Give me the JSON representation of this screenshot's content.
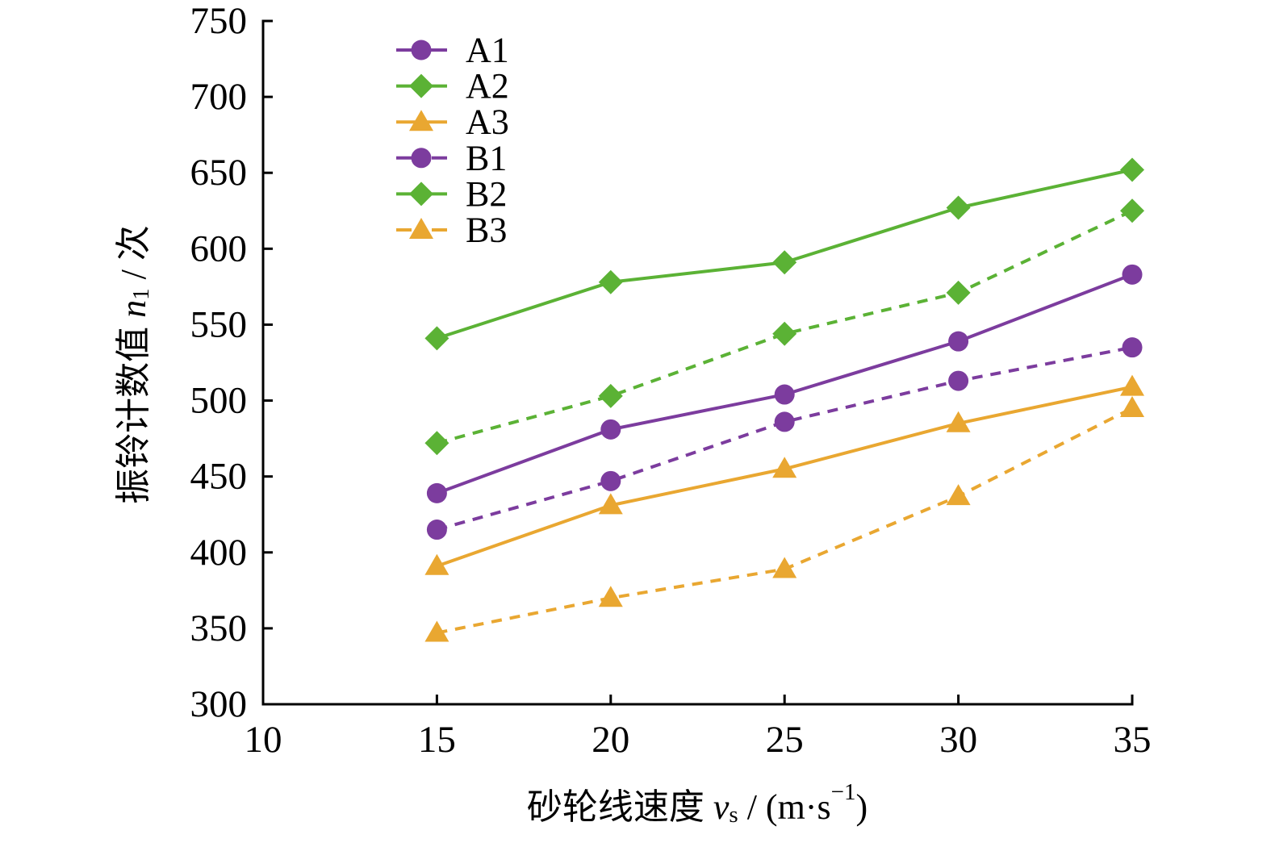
{
  "chart_data": {
    "type": "line",
    "x": [
      15,
      20,
      25,
      30,
      35
    ],
    "xlim": [
      10,
      35
    ],
    "ylim": [
      300,
      750
    ],
    "xticks": [
      10,
      15,
      20,
      25,
      30,
      35
    ],
    "yticks": [
      300,
      350,
      400,
      450,
      500,
      550,
      600,
      650,
      700,
      750
    ],
    "xlabel": [
      "砂轮线速度 ",
      "v",
      "s",
      " / (m·s",
      "−1",
      ")"
    ],
    "ylabel": [
      "振铃计数值 ",
      "n",
      "1",
      " / 次"
    ],
    "grid": false,
    "legend_position": "top-left",
    "series": [
      {
        "name": "A1",
        "values": [
          439,
          481,
          504,
          539,
          583
        ],
        "color": "#7C3C9E",
        "line": "solid",
        "marker": "circle"
      },
      {
        "name": "A2",
        "values": [
          541,
          578,
          591,
          627,
          652
        ],
        "color": "#5BB235",
        "line": "solid",
        "marker": "diamond"
      },
      {
        "name": "A3",
        "values": [
          391,
          431,
          455,
          485,
          509
        ],
        "color": "#E9A731",
        "line": "solid",
        "marker": "triangle"
      },
      {
        "name": "B1",
        "values": [
          415,
          447,
          486,
          513,
          535
        ],
        "color": "#7C3C9E",
        "line": "dashed",
        "marker": "circle"
      },
      {
        "name": "B2",
        "values": [
          472,
          503,
          544,
          571,
          625
        ],
        "color": "#5BB235",
        "line": "dashed",
        "marker": "diamond"
      },
      {
        "name": "B3",
        "values": [
          347,
          370,
          389,
          437,
          495
        ],
        "color": "#E9A731",
        "line": "dashed",
        "marker": "triangle"
      }
    ]
  }
}
